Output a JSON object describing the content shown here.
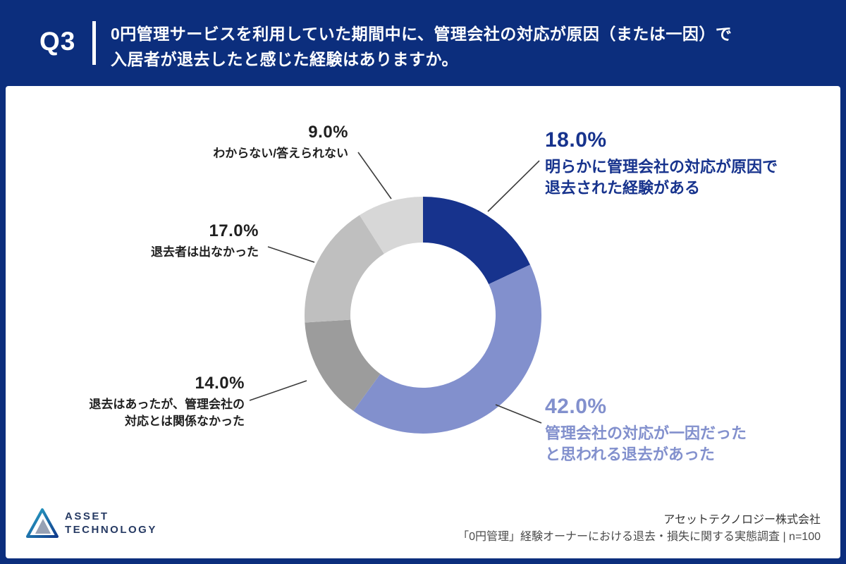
{
  "header": {
    "question_number": "Q3",
    "question_line1": "0円管理サービスを利用していた期間中に、管理会社の対応が原因（または一因）で",
    "question_line2": "入居者が退去したと感じた経験はありますか。"
  },
  "chart_data": {
    "type": "pie",
    "subtype": "donut",
    "title": "0円管理サービスを利用していた期間中に、管理会社の対応が原因（または一因）で入居者が退去したと感じた経験はありますか。",
    "units": "%",
    "n": 100,
    "start_angle_deg": 0,
    "direction": "clockwise",
    "legend_position": "callout-labels",
    "segments": [
      {
        "label": "明らかに管理会社の対応が原因で退去された経験がある",
        "value": 18.0,
        "percent_label": "18.0%",
        "callout_lines": [
          "明らかに管理会社の対応が原因で",
          "退去された経験がある"
        ],
        "color": "#17338d"
      },
      {
        "label": "管理会社の対応が一因だったと思われる退去があった",
        "value": 42.0,
        "percent_label": "42.0%",
        "callout_lines": [
          "管理会社の対応が一因だった",
          "と思われる退去があった"
        ],
        "color": "#8290cd"
      },
      {
        "label": "退去はあったが、管理会社の対応とは関係なかった",
        "value": 14.0,
        "percent_label": "14.0%",
        "callout_lines": [
          "退去はあったが、管理会社の",
          "対応とは関係なかった"
        ],
        "color": "#9c9c9c"
      },
      {
        "label": "退去者は出なかった",
        "value": 17.0,
        "percent_label": "17.0%",
        "callout_lines": [
          "退去者は出なかった"
        ],
        "color": "#bfbfbf"
      },
      {
        "label": "わからない/答えられない",
        "value": 9.0,
        "percent_label": "9.0%",
        "callout_lines": [
          "わからない/答えられない"
        ],
        "color": "#d7d7d7"
      }
    ]
  },
  "footer": {
    "logo_line1": "ASSET",
    "logo_line2": "TECHNOLOGY",
    "company": "アセットテクノロジー株式会社",
    "source": "「0円管理」経験オーナーにおける退去・損失に関する実態調査 | n=100"
  }
}
